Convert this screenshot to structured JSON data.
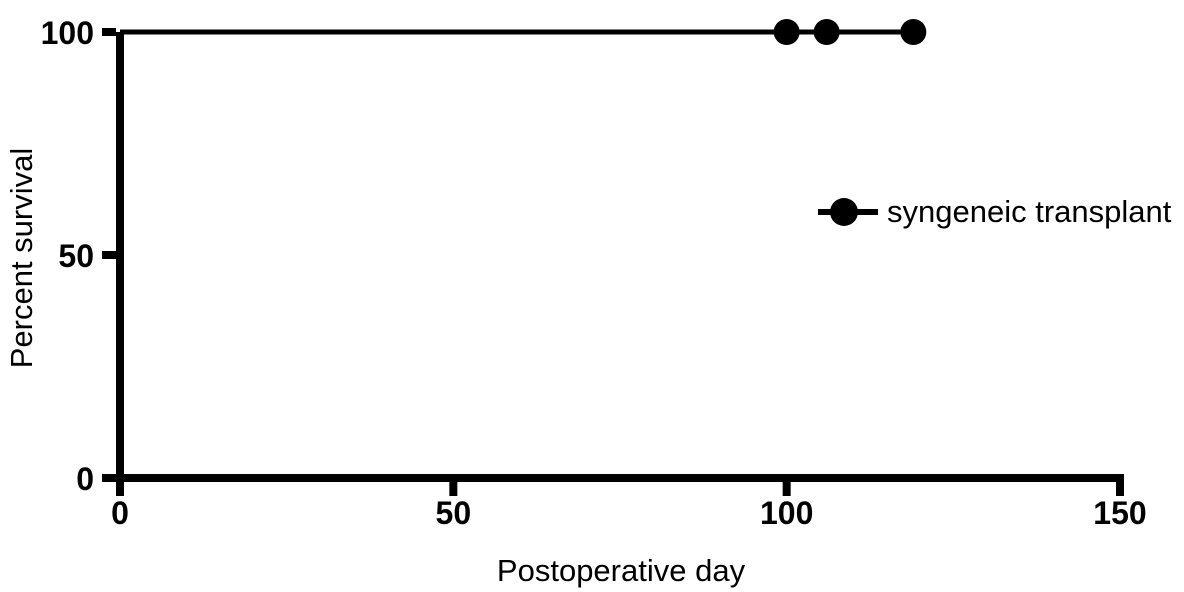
{
  "chart_data": {
    "type": "line",
    "subtype": "kaplan_meier_survival",
    "title": "",
    "xlabel": "Postoperative day",
    "ylabel": "Percent survival",
    "xlim": [
      0,
      150
    ],
    "ylim": [
      0,
      100
    ],
    "xticks": [
      0,
      50,
      100,
      150
    ],
    "yticks": [
      0,
      50,
      100
    ],
    "grid": false,
    "background": "#ffffff",
    "ink": "#000000",
    "legend": {
      "position": "right-middle",
      "marker": "filled-circle-on-line",
      "entries": [
        "syngeneic transplant"
      ]
    },
    "series": [
      {
        "name": "syngeneic transplant",
        "color": "#000000",
        "line": {
          "x": [
            0,
            119
          ],
          "y": [
            100,
            100
          ]
        },
        "censor_marks": {
          "marker": "filled-circle",
          "x": [
            100,
            106,
            119
          ],
          "y": [
            100,
            100,
            100
          ]
        }
      }
    ]
  }
}
